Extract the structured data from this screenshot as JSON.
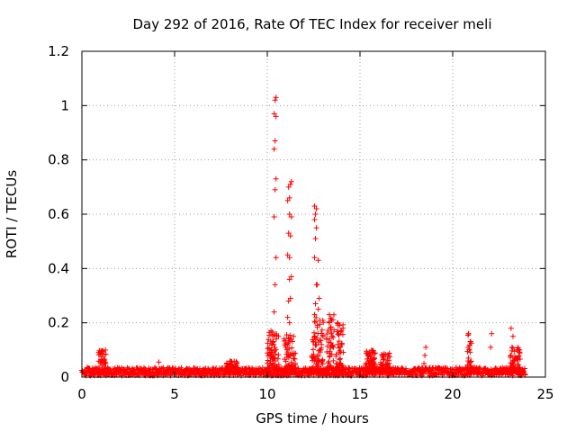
{
  "chart_data": {
    "type": "scatter",
    "title": "Day 292 of 2016, Rate Of TEC Index for receiver meli",
    "xlabel": "GPS time / hours",
    "ylabel": "ROTI / TECUs",
    "xlim": [
      0,
      25
    ],
    "ylim": [
      0,
      1.2
    ],
    "xticks": [
      0,
      5,
      10,
      15,
      20,
      25
    ],
    "yticks": [
      0,
      0.2,
      0.4,
      0.6,
      0.8,
      1,
      1.2
    ],
    "xtick_labels": [
      "0",
      "5",
      "10",
      "15",
      "20",
      "25"
    ],
    "ytick_labels": [
      "0",
      "0.2",
      "0.4",
      "0.6",
      "0.8",
      "1",
      "1.2"
    ],
    "grid": true,
    "marker": "+",
    "color": "#ff0000",
    "baseline_band": {
      "x_start": 0,
      "x_end": 23.9,
      "y_min": 0.005,
      "y_max": 0.035
    },
    "burst_regions": [
      {
        "x_start": 0.9,
        "x_end": 1.3,
        "y_max": 0.1
      },
      {
        "x_start": 7.8,
        "x_end": 8.4,
        "y_max": 0.06
      },
      {
        "x_start": 10.0,
        "x_end": 10.6,
        "y_max": 0.17
      },
      {
        "x_start": 10.9,
        "x_end": 11.5,
        "y_max": 0.16
      },
      {
        "x_start": 12.4,
        "x_end": 13.0,
        "y_max": 0.22
      },
      {
        "x_start": 13.2,
        "x_end": 13.6,
        "y_max": 0.23
      },
      {
        "x_start": 13.7,
        "x_end": 14.1,
        "y_max": 0.2
      },
      {
        "x_start": 15.3,
        "x_end": 15.8,
        "y_max": 0.1
      },
      {
        "x_start": 16.1,
        "x_end": 16.6,
        "y_max": 0.09
      },
      {
        "x_start": 20.8,
        "x_end": 21.0,
        "y_max": 0.17
      },
      {
        "x_start": 23.1,
        "x_end": 23.6,
        "y_max": 0.11
      }
    ],
    "spike_columns": [
      {
        "x": 10.42,
        "y": [
          0.24,
          0.34,
          0.44,
          0.59,
          0.69,
          0.73,
          0.84,
          0.87,
          0.96,
          0.97,
          1.02,
          1.03
        ]
      },
      {
        "x": 10.25,
        "y": [
          0.1,
          0.12,
          0.15,
          0.17
        ]
      },
      {
        "x": 11.15,
        "y": [
          0.22,
          0.28,
          0.36,
          0.45,
          0.53,
          0.6,
          0.65,
          0.7
        ]
      },
      {
        "x": 11.25,
        "y": [
          0.2,
          0.29,
          0.37,
          0.44,
          0.52,
          0.59,
          0.66,
          0.71,
          0.72
        ]
      },
      {
        "x": 12.6,
        "y": [
          0.23,
          0.27,
          0.34,
          0.44,
          0.51,
          0.55,
          0.58,
          0.6,
          0.62,
          0.63
        ]
      },
      {
        "x": 12.75,
        "y": [
          0.19,
          0.25,
          0.29,
          0.34,
          0.43
        ]
      },
      {
        "x": 13.4,
        "y": [
          0.14,
          0.18,
          0.21,
          0.23
        ]
      },
      {
        "x": 13.85,
        "y": [
          0.12,
          0.16,
          0.19,
          0.2
        ]
      },
      {
        "x": 18.5,
        "y": [
          0.05,
          0.08,
          0.11
        ]
      },
      {
        "x": 20.9,
        "y": [
          0.07,
          0.1,
          0.13,
          0.16
        ]
      },
      {
        "x": 22.1,
        "y": [
          0.11,
          0.16
        ]
      },
      {
        "x": 23.2,
        "y": [
          0.08,
          0.11,
          0.15,
          0.18
        ]
      },
      {
        "x": 4.2,
        "y": [
          0.055
        ]
      }
    ]
  }
}
